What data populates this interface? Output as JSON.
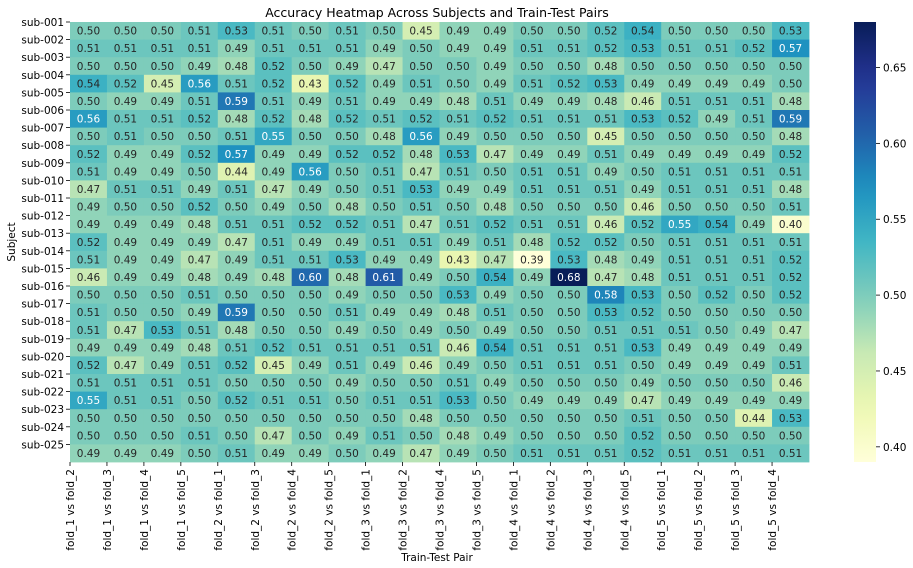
{
  "chart_data": {
    "type": "heatmap",
    "title": "Accuracy Heatmap Across Subjects and Train-Test Pairs",
    "xlabel": "Train-Test Pair",
    "ylabel": "Subject",
    "x_categories": [
      "fold_1 vs fold_2",
      "fold_1 vs fold_3",
      "fold_1 vs fold_4",
      "fold_1 vs fold_5",
      "fold_2 vs fold_1",
      "fold_2 vs fold_3",
      "fold_2 vs fold_4",
      "fold_2 vs fold_5",
      "fold_3 vs fold_1",
      "fold_3 vs fold_2",
      "fold_3 vs fold_4",
      "fold_3 vs fold_5",
      "fold_4 vs fold_1",
      "fold_4 vs fold_2",
      "fold_4 vs fold_3",
      "fold_4 vs fold_5",
      "fold_5 vs fold_1",
      "fold_5 vs fold_2",
      "fold_5 vs fold_3",
      "fold_5 vs fold_4"
    ],
    "y_categories": [
      "sub-001",
      "sub-002",
      "sub-003",
      "sub-004",
      "sub-005",
      "sub-006",
      "sub-007",
      "sub-008",
      "sub-009",
      "sub-010",
      "sub-011",
      "sub-012",
      "sub-013",
      "sub-014",
      "sub-015",
      "sub-016",
      "sub-017",
      "sub-018",
      "sub-019",
      "sub-020",
      "sub-021",
      "sub-022",
      "sub-023",
      "sub-024",
      "sub-025"
    ],
    "values": [
      [
        0.5,
        0.5,
        0.5,
        0.51,
        0.53,
        0.51,
        0.5,
        0.51,
        0.5,
        0.45,
        0.49,
        0.49,
        0.5,
        0.5,
        0.52,
        0.54,
        0.5,
        0.5,
        0.5,
        0.53
      ],
      [
        0.51,
        0.51,
        0.51,
        0.51,
        0.49,
        0.51,
        0.51,
        0.51,
        0.49,
        0.5,
        0.49,
        0.49,
        0.51,
        0.51,
        0.52,
        0.53,
        0.51,
        0.51,
        0.52,
        0.57
      ],
      [
        0.5,
        0.5,
        0.5,
        0.49,
        0.48,
        0.52,
        0.5,
        0.49,
        0.47,
        0.5,
        0.5,
        0.49,
        0.5,
        0.5,
        0.48,
        0.5,
        0.5,
        0.5,
        0.5,
        0.5
      ],
      [
        0.54,
        0.52,
        0.45,
        0.56,
        0.51,
        0.52,
        0.43,
        0.52,
        0.49,
        0.51,
        0.5,
        0.49,
        0.51,
        0.52,
        0.53,
        0.49,
        0.49,
        0.49,
        0.49,
        0.5
      ],
      [
        0.5,
        0.49,
        0.49,
        0.51,
        0.59,
        0.51,
        0.49,
        0.51,
        0.49,
        0.49,
        0.48,
        0.51,
        0.49,
        0.49,
        0.48,
        0.46,
        0.51,
        0.51,
        0.51,
        0.48
      ],
      [
        0.56,
        0.51,
        0.51,
        0.52,
        0.48,
        0.52,
        0.48,
        0.52,
        0.51,
        0.52,
        0.51,
        0.52,
        0.51,
        0.51,
        0.51,
        0.53,
        0.52,
        0.49,
        0.51,
        0.59
      ],
      [
        0.5,
        0.51,
        0.5,
        0.5,
        0.51,
        0.55,
        0.5,
        0.5,
        0.48,
        0.56,
        0.49,
        0.5,
        0.5,
        0.5,
        0.45,
        0.5,
        0.5,
        0.5,
        0.5,
        0.48
      ],
      [
        0.52,
        0.49,
        0.49,
        0.52,
        0.57,
        0.49,
        0.49,
        0.52,
        0.52,
        0.48,
        0.53,
        0.47,
        0.49,
        0.49,
        0.51,
        0.49,
        0.49,
        0.49,
        0.49,
        0.52
      ],
      [
        0.51,
        0.49,
        0.49,
        0.5,
        0.44,
        0.49,
        0.56,
        0.5,
        0.51,
        0.47,
        0.51,
        0.5,
        0.51,
        0.51,
        0.49,
        0.5,
        0.51,
        0.51,
        0.51,
        0.51
      ],
      [
        0.47,
        0.51,
        0.51,
        0.49,
        0.51,
        0.47,
        0.49,
        0.5,
        0.51,
        0.53,
        0.49,
        0.49,
        0.51,
        0.51,
        0.51,
        0.49,
        0.51,
        0.51,
        0.51,
        0.48
      ],
      [
        0.49,
        0.5,
        0.5,
        0.52,
        0.5,
        0.49,
        0.5,
        0.48,
        0.5,
        0.51,
        0.5,
        0.48,
        0.5,
        0.5,
        0.5,
        0.46,
        0.5,
        0.5,
        0.5,
        0.51
      ],
      [
        0.49,
        0.49,
        0.49,
        0.48,
        0.51,
        0.51,
        0.52,
        0.52,
        0.51,
        0.47,
        0.51,
        0.52,
        0.51,
        0.51,
        0.46,
        0.52,
        0.55,
        0.54,
        0.49,
        0.4
      ],
      [
        0.52,
        0.49,
        0.49,
        0.49,
        0.47,
        0.51,
        0.49,
        0.49,
        0.51,
        0.51,
        0.49,
        0.51,
        0.48,
        0.52,
        0.52,
        0.5,
        0.51,
        0.51,
        0.51,
        0.51
      ],
      [
        0.51,
        0.49,
        0.49,
        0.47,
        0.49,
        0.51,
        0.51,
        0.53,
        0.49,
        0.49,
        0.43,
        0.47,
        0.39,
        0.53,
        0.48,
        0.49,
        0.51,
        0.51,
        0.51,
        0.52
      ],
      [
        0.46,
        0.49,
        0.49,
        0.48,
        0.49,
        0.48,
        0.6,
        0.48,
        0.61,
        0.49,
        0.5,
        0.54,
        0.49,
        0.68,
        0.47,
        0.48,
        0.51,
        0.51,
        0.51,
        0.52
      ],
      [
        0.5,
        0.5,
        0.5,
        0.51,
        0.5,
        0.5,
        0.5,
        0.49,
        0.5,
        0.5,
        0.53,
        0.49,
        0.5,
        0.5,
        0.58,
        0.53,
        0.5,
        0.52,
        0.5,
        0.52
      ],
      [
        0.51,
        0.5,
        0.5,
        0.49,
        0.59,
        0.5,
        0.5,
        0.51,
        0.49,
        0.49,
        0.48,
        0.51,
        0.5,
        0.5,
        0.53,
        0.52,
        0.5,
        0.5,
        0.5,
        0.5
      ],
      [
        0.51,
        0.47,
        0.53,
        0.51,
        0.48,
        0.5,
        0.5,
        0.49,
        0.5,
        0.49,
        0.5,
        0.49,
        0.5,
        0.5,
        0.51,
        0.51,
        0.51,
        0.5,
        0.49,
        0.47
      ],
      [
        0.49,
        0.49,
        0.49,
        0.48,
        0.51,
        0.52,
        0.51,
        0.51,
        0.51,
        0.51,
        0.46,
        0.54,
        0.51,
        0.51,
        0.51,
        0.53,
        0.49,
        0.49,
        0.49,
        0.49
      ],
      [
        0.52,
        0.47,
        0.49,
        0.51,
        0.52,
        0.45,
        0.49,
        0.51,
        0.49,
        0.46,
        0.49,
        0.5,
        0.51,
        0.51,
        0.51,
        0.5,
        0.49,
        0.49,
        0.49,
        0.51
      ],
      [
        0.51,
        0.51,
        0.51,
        0.51,
        0.5,
        0.5,
        0.5,
        0.49,
        0.5,
        0.5,
        0.51,
        0.49,
        0.5,
        0.5,
        0.5,
        0.49,
        0.5,
        0.5,
        0.5,
        0.46
      ],
      [
        0.55,
        0.51,
        0.51,
        0.5,
        0.52,
        0.51,
        0.51,
        0.5,
        0.51,
        0.51,
        0.53,
        0.5,
        0.49,
        0.49,
        0.49,
        0.47,
        0.49,
        0.49,
        0.49,
        0.49
      ],
      [
        0.5,
        0.5,
        0.5,
        0.5,
        0.5,
        0.5,
        0.5,
        0.5,
        0.5,
        0.48,
        0.5,
        0.5,
        0.5,
        0.5,
        0.5,
        0.51,
        0.5,
        0.5,
        0.44,
        0.53
      ],
      [
        0.5,
        0.5,
        0.5,
        0.51,
        0.5,
        0.47,
        0.5,
        0.49,
        0.51,
        0.5,
        0.48,
        0.49,
        0.5,
        0.5,
        0.5,
        0.52,
        0.5,
        0.5,
        0.5,
        0.5
      ],
      [
        0.49,
        0.49,
        0.49,
        0.5,
        0.51,
        0.49,
        0.49,
        0.5,
        0.49,
        0.47,
        0.49,
        0.5,
        0.51,
        0.51,
        0.51,
        0.52,
        0.51,
        0.51,
        0.51,
        0.51
      ]
    ],
    "colorbar": {
      "colormap": "YlGnBu",
      "range": [
        0.39,
        0.68
      ],
      "ticks": [
        "0.40",
        "0.45",
        "0.50",
        "0.55",
        "0.60",
        "0.65"
      ]
    },
    "annotations": "cell values shown with two decimals"
  }
}
